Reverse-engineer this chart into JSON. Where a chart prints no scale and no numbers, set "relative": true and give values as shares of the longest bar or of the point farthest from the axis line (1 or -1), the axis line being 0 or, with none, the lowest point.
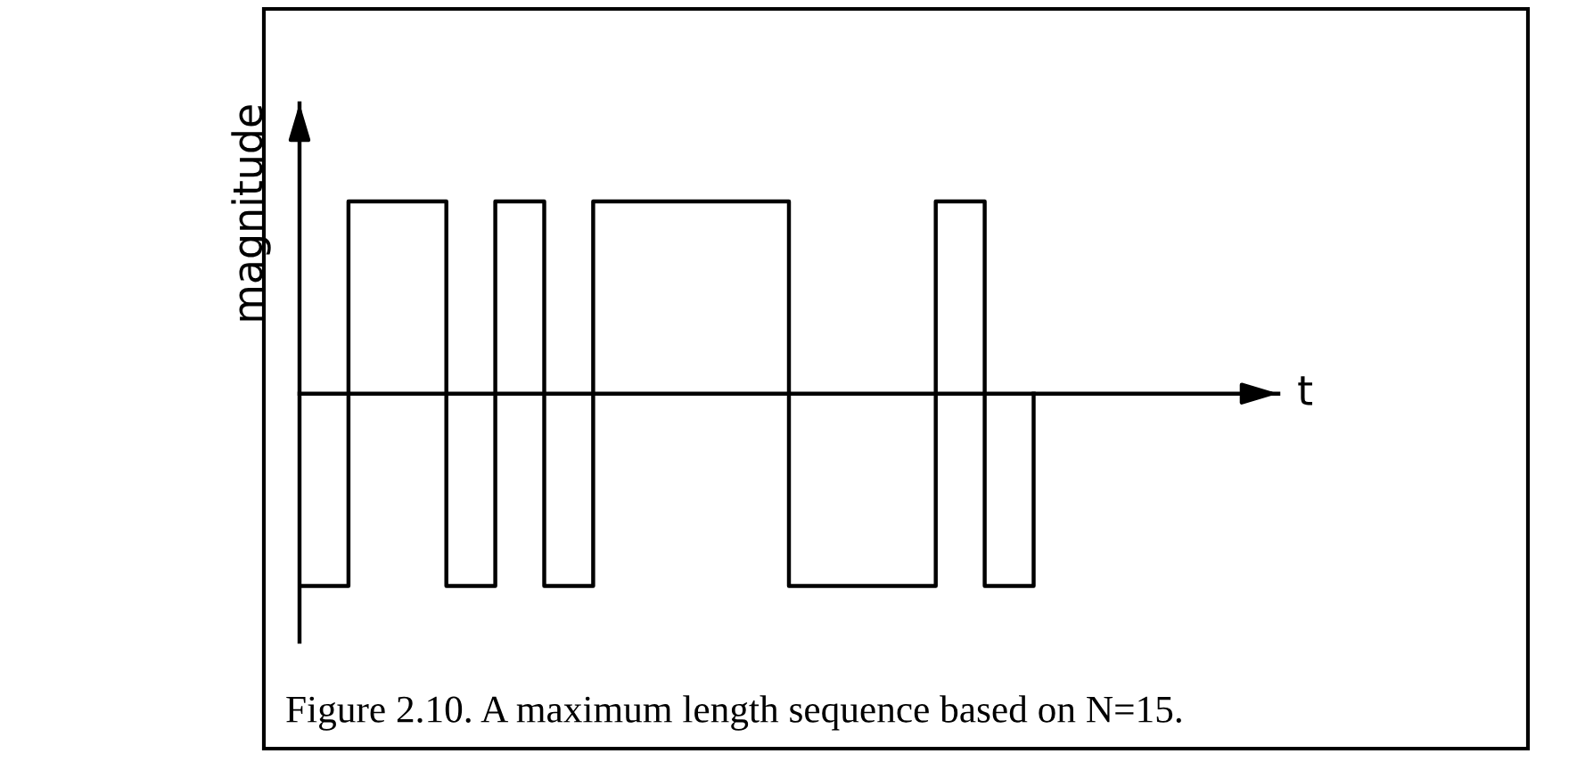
{
  "chart_data": {
    "type": "step",
    "relative": true,
    "categories": [
      null,
      null,
      null,
      null,
      null,
      null,
      null,
      null,
      null,
      null,
      null,
      null,
      null,
      null,
      null,
      null
    ],
    "values": [
      -1,
      1,
      1,
      -1,
      1,
      -1,
      1,
      1,
      1,
      1,
      -1,
      -1,
      -1,
      1,
      -1,
      0
    ],
    "color": "#000000",
    "ylabel": "magnitude",
    "annotations": [
      "t",
      "Figure 2.10. A maximum length sequence based on N=15."
    ]
  }
}
